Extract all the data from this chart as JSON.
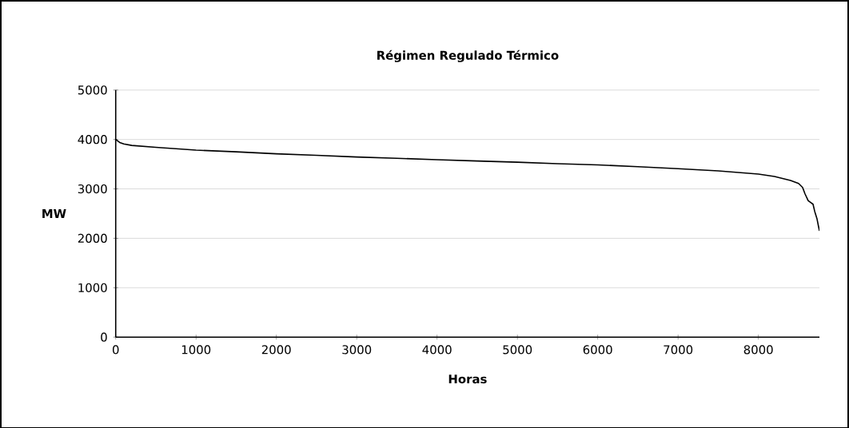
{
  "chart_data": {
    "type": "line",
    "title": "Régimen Regulado Térmico",
    "xlabel": "Horas",
    "ylabel": "MW",
    "x": [
      0,
      50,
      100,
      200,
      500,
      1000,
      1500,
      2000,
      2500,
      3000,
      3500,
      4000,
      4500,
      5000,
      5500,
      6000,
      6500,
      7000,
      7500,
      8000,
      8200,
      8400,
      8500,
      8550,
      8580,
      8620,
      8680,
      8700,
      8730,
      8750,
      8760
    ],
    "series": [
      {
        "color": "#000000",
        "values": [
          4000,
          3940,
          3910,
          3880,
          3840,
          3785,
          3750,
          3710,
          3680,
          3645,
          3620,
          3590,
          3565,
          3540,
          3510,
          3485,
          3450,
          3410,
          3365,
          3300,
          3250,
          3170,
          3110,
          3030,
          2900,
          2760,
          2690,
          2550,
          2390,
          2225,
          2150
        ]
      }
    ],
    "xlim": [
      0,
      8760
    ],
    "ylim": [
      0,
      5000
    ],
    "xticks": [
      0,
      1000,
      2000,
      3000,
      4000,
      5000,
      6000,
      7000,
      8000
    ],
    "yticks": [
      0,
      1000,
      2000,
      3000,
      4000,
      5000
    ],
    "grid": "y",
    "marker": "none",
    "line_style": "solid"
  }
}
